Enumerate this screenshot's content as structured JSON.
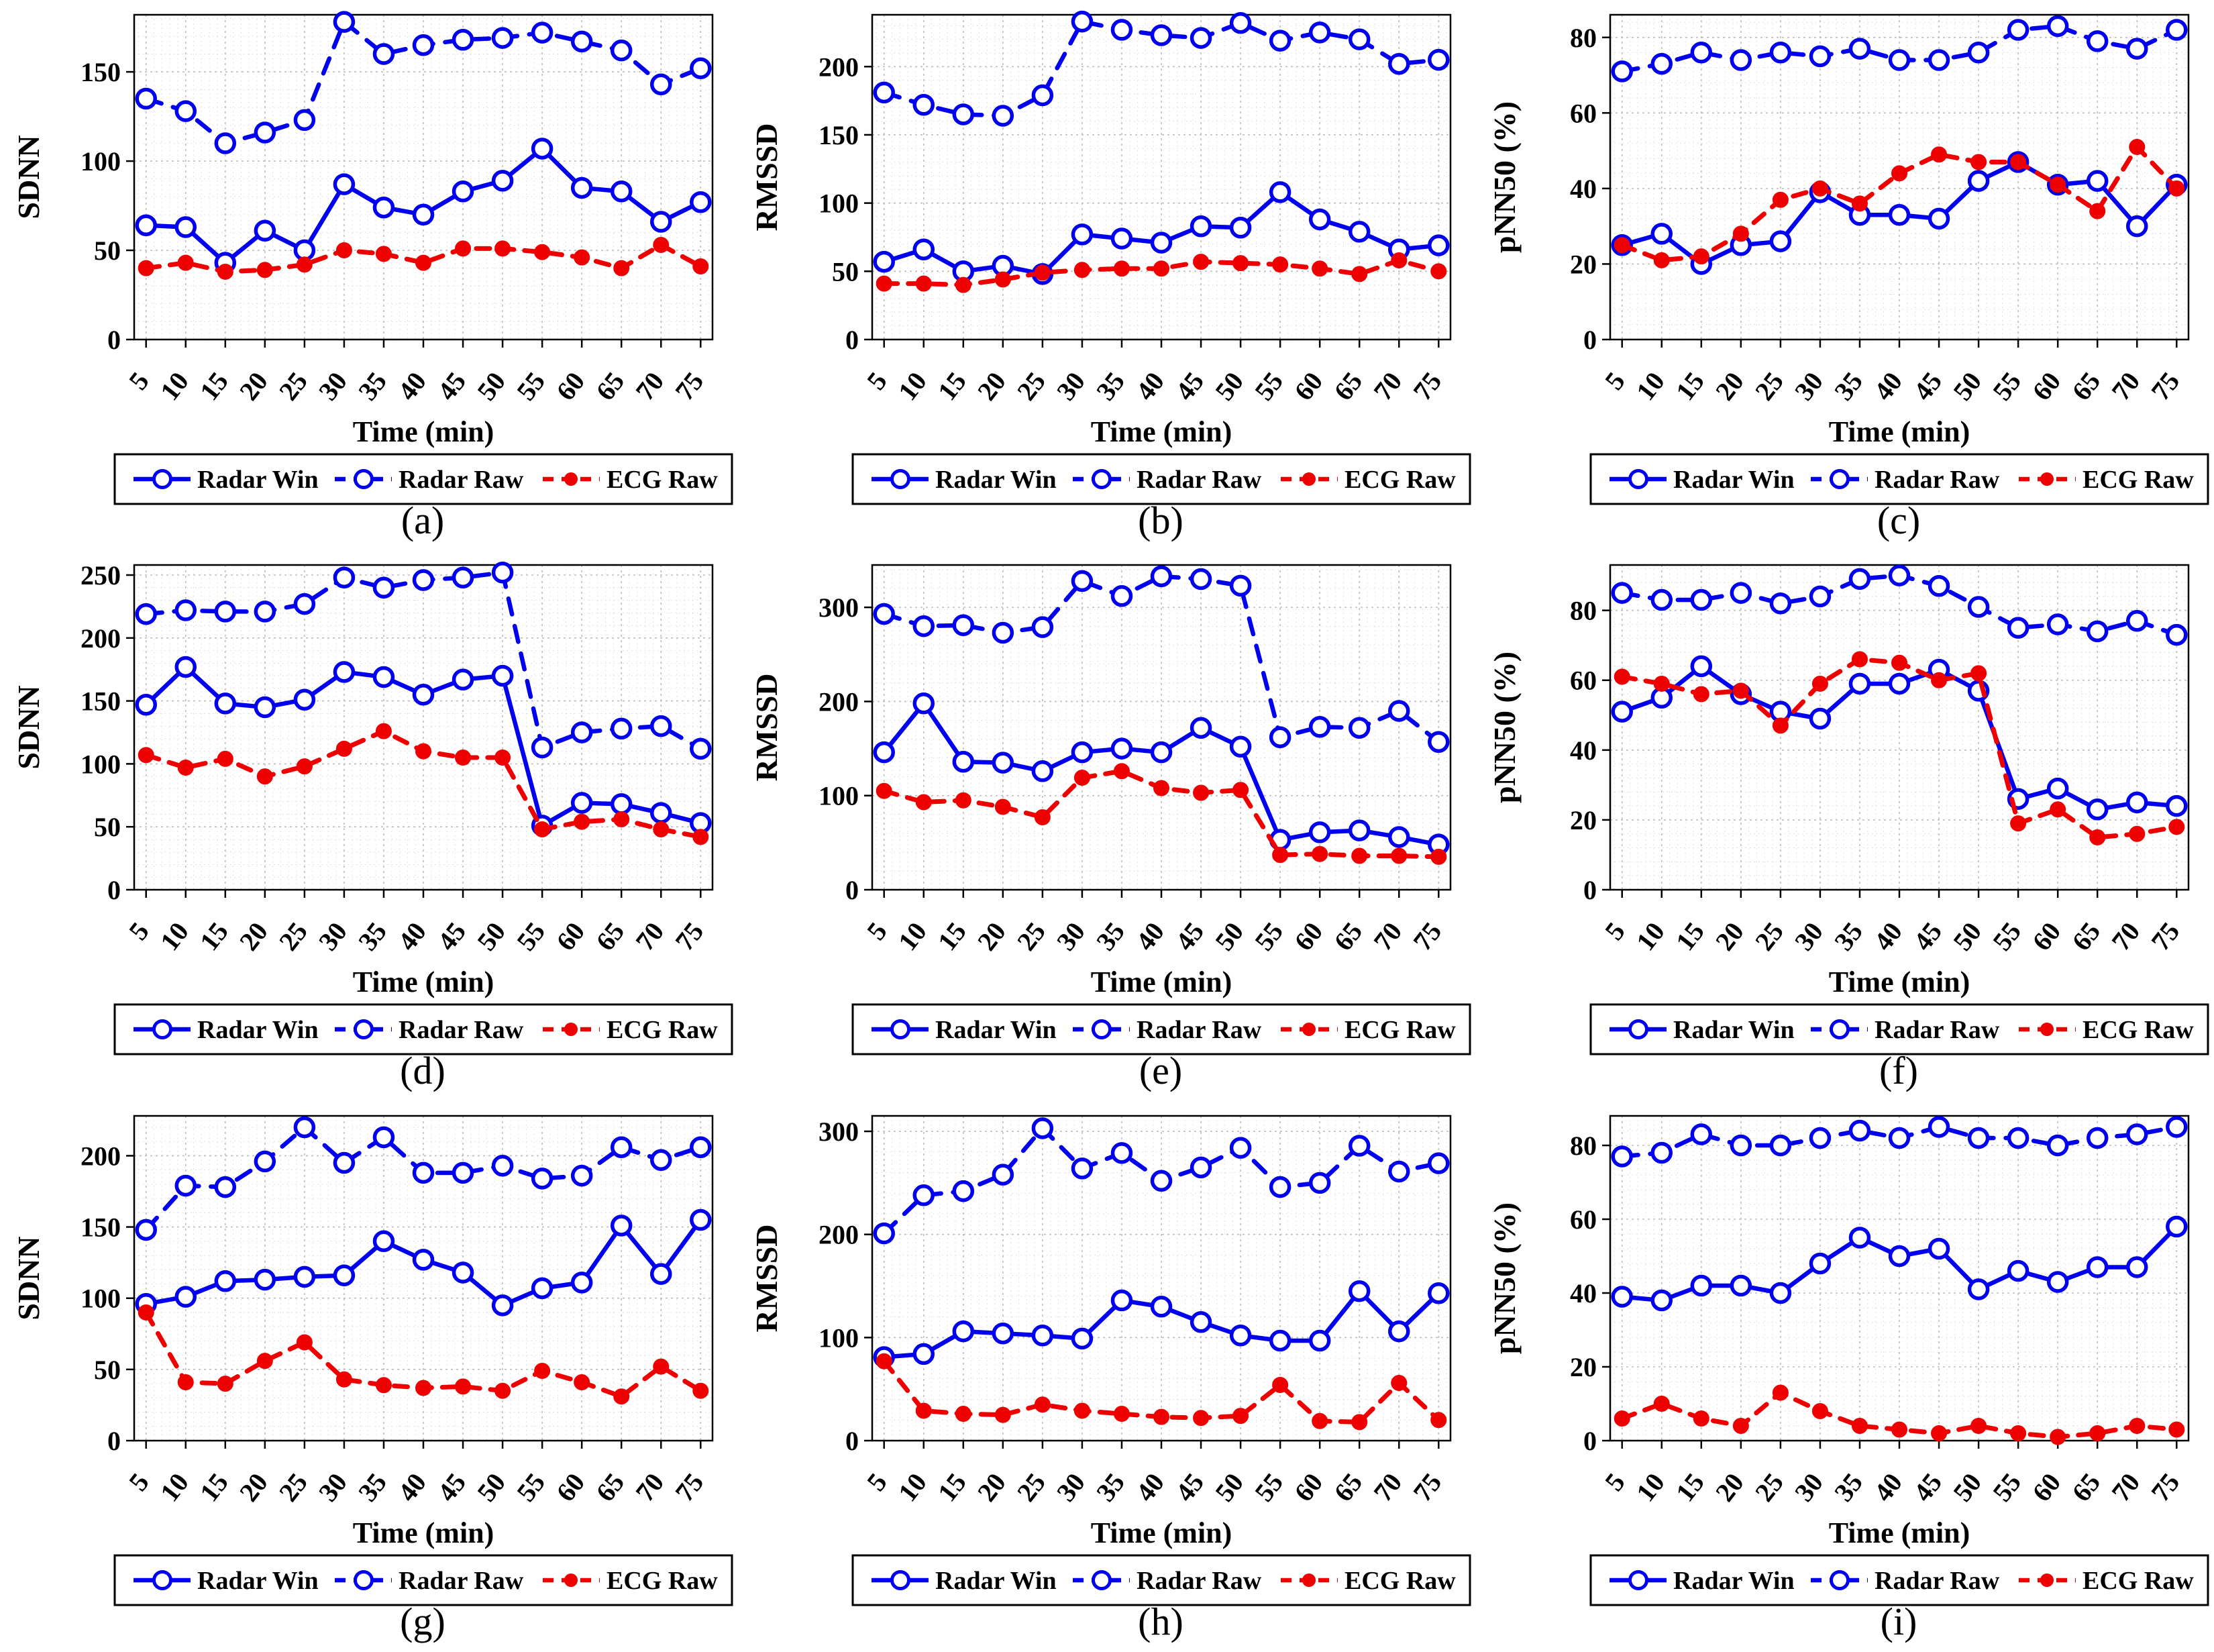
{
  "figure": {
    "xlabel": "Time (min)",
    "legend_labels": [
      "Radar Win",
      "Radar Raw",
      "ECG Raw"
    ],
    "colors": {
      "radar_blue": "#0000EE",
      "ecg_red": "#EE0000",
      "axis_black": "#000000",
      "grid_major": "#bdbdbd",
      "grid_minor": "#d9d9d9"
    }
  },
  "chart_data": [
    {
      "id": "a",
      "caption": "(a)",
      "type": "line",
      "xlabel": "Time (min)",
      "ylabel": "SDNN",
      "x": [
        5,
        10,
        15,
        20,
        25,
        30,
        35,
        40,
        45,
        50,
        55,
        60,
        65,
        70,
        75
      ],
      "xlim": [
        3.5,
        76.5
      ],
      "ylim": [
        0,
        182
      ],
      "yticks": [
        0,
        50,
        100,
        150
      ],
      "grid": true,
      "legend_position": "below",
      "series": [
        {
          "name": "Radar Win",
          "color": "#0000EE",
          "line": "solid",
          "marker": "open-circle",
          "values": [
            64,
            63,
            43,
            61,
            50,
            87,
            74,
            70,
            83,
            89,
            107,
            85,
            83,
            66,
            77
          ]
        },
        {
          "name": "Radar Raw",
          "color": "#0000EE",
          "line": "dashed",
          "marker": "open-circle",
          "values": [
            135,
            128,
            110,
            116,
            123,
            178,
            160,
            165,
            168,
            169,
            172,
            167,
            162,
            143,
            152
          ]
        },
        {
          "name": "ECG Raw",
          "color": "#EE0000",
          "line": "dashed",
          "marker": "filled-circle",
          "values": [
            40,
            43,
            38,
            39,
            42,
            50,
            48,
            43,
            51,
            51,
            49,
            46,
            40,
            53,
            41
          ]
        }
      ]
    },
    {
      "id": "b",
      "caption": "(b)",
      "type": "line",
      "xlabel": "Time (min)",
      "ylabel": "RMSSD",
      "x": [
        5,
        10,
        15,
        20,
        25,
        30,
        35,
        40,
        45,
        50,
        55,
        60,
        65,
        70,
        75
      ],
      "xlim": [
        3.5,
        76.5
      ],
      "ylim": [
        0,
        238
      ],
      "yticks": [
        0,
        50,
        100,
        150,
        200
      ],
      "grid": true,
      "legend_position": "below",
      "series": [
        {
          "name": "Radar Win",
          "color": "#0000EE",
          "line": "solid",
          "marker": "open-circle",
          "values": [
            57,
            66,
            50,
            54,
            48,
            77,
            74,
            71,
            83,
            82,
            108,
            88,
            79,
            66,
            69
          ]
        },
        {
          "name": "Radar Raw",
          "color": "#0000EE",
          "line": "dashed",
          "marker": "open-circle",
          "values": [
            181,
            172,
            165,
            164,
            179,
            233,
            227,
            223,
            221,
            232,
            219,
            225,
            220,
            202,
            205
          ]
        },
        {
          "name": "ECG Raw",
          "color": "#EE0000",
          "line": "dashed",
          "marker": "filled-circle",
          "values": [
            41,
            41,
            40,
            44,
            49,
            51,
            52,
            52,
            57,
            56,
            55,
            52,
            48,
            58,
            50
          ]
        }
      ]
    },
    {
      "id": "c",
      "caption": "(c)",
      "type": "line",
      "xlabel": "Time (min)",
      "ylabel": "pNN50 (%)",
      "x": [
        5,
        10,
        15,
        20,
        25,
        30,
        35,
        40,
        45,
        50,
        55,
        60,
        65,
        70,
        75
      ],
      "xlim": [
        3.5,
        76.5
      ],
      "ylim": [
        0,
        86
      ],
      "yticks": [
        0,
        20,
        40,
        60,
        80
      ],
      "grid": true,
      "legend_position": "below",
      "series": [
        {
          "name": "Radar Win",
          "color": "#0000EE",
          "line": "solid",
          "marker": "open-circle",
          "values": [
            25,
            28,
            20,
            25,
            26,
            39,
            33,
            33,
            32,
            42,
            47,
            41,
            42,
            30,
            41
          ]
        },
        {
          "name": "Radar Raw",
          "color": "#0000EE",
          "line": "dashed",
          "marker": "open-circle",
          "values": [
            71,
            73,
            76,
            74,
            76,
            75,
            77,
            74,
            74,
            76,
            82,
            83,
            79,
            77,
            82
          ]
        },
        {
          "name": "ECG Raw",
          "color": "#EE0000",
          "line": "dashed",
          "marker": "filled-circle",
          "values": [
            25,
            21,
            22,
            28,
            37,
            40,
            36,
            44,
            49,
            47,
            47,
            41,
            34,
            51,
            40
          ]
        }
      ]
    },
    {
      "id": "d",
      "caption": "(d)",
      "type": "line",
      "xlabel": "Time (min)",
      "ylabel": "SDNN",
      "x": [
        5,
        10,
        15,
        20,
        25,
        30,
        35,
        40,
        45,
        50,
        55,
        60,
        65,
        70,
        75
      ],
      "xlim": [
        3.5,
        76.5
      ],
      "ylim": [
        0,
        258
      ],
      "yticks": [
        0,
        50,
        100,
        150,
        200,
        250
      ],
      "grid": true,
      "legend_position": "below",
      "series": [
        {
          "name": "Radar Win",
          "color": "#0000EE",
          "line": "solid",
          "marker": "open-circle",
          "values": [
            147,
            177,
            148,
            145,
            151,
            173,
            169,
            155,
            167,
            170,
            51,
            69,
            68,
            61,
            53
          ]
        },
        {
          "name": "Radar Raw",
          "color": "#0000EE",
          "line": "dashed",
          "marker": "open-circle",
          "values": [
            219,
            222,
            221,
            221,
            227,
            248,
            240,
            246,
            248,
            252,
            113,
            125,
            128,
            130,
            112
          ]
        },
        {
          "name": "ECG Raw",
          "color": "#EE0000",
          "line": "dashed",
          "marker": "filled-circle",
          "values": [
            107,
            97,
            104,
            90,
            98,
            112,
            126,
            110,
            105,
            105,
            48,
            54,
            56,
            48,
            42
          ]
        }
      ]
    },
    {
      "id": "e",
      "caption": "(e)",
      "type": "line",
      "xlabel": "Time (min)",
      "ylabel": "RMSSD",
      "x": [
        5,
        10,
        15,
        20,
        25,
        30,
        35,
        40,
        45,
        50,
        55,
        60,
        65,
        70,
        75
      ],
      "xlim": [
        3.5,
        76.5
      ],
      "ylim": [
        0,
        345
      ],
      "yticks": [
        0,
        100,
        200,
        300
      ],
      "grid": true,
      "legend_position": "below",
      "series": [
        {
          "name": "Radar Win",
          "color": "#0000EE",
          "line": "solid",
          "marker": "open-circle",
          "values": [
            146,
            198,
            136,
            135,
            126,
            146,
            150,
            146,
            172,
            152,
            53,
            61,
            63,
            56,
            48
          ]
        },
        {
          "name": "Radar Raw",
          "color": "#0000EE",
          "line": "dashed",
          "marker": "open-circle",
          "values": [
            293,
            280,
            281,
            273,
            279,
            328,
            312,
            333,
            330,
            323,
            162,
            173,
            172,
            190,
            157
          ]
        },
        {
          "name": "ECG Raw",
          "color": "#EE0000",
          "line": "dashed",
          "marker": "filled-circle",
          "values": [
            105,
            93,
            95,
            88,
            77,
            119,
            126,
            108,
            103,
            106,
            37,
            38,
            36,
            36,
            35
          ]
        }
      ]
    },
    {
      "id": "f",
      "caption": "(f)",
      "type": "line",
      "xlabel": "Time (min)",
      "ylabel": "pNN50 (%)",
      "x": [
        5,
        10,
        15,
        20,
        25,
        30,
        35,
        40,
        45,
        50,
        55,
        60,
        65,
        70,
        75
      ],
      "xlim": [
        3.5,
        76.5
      ],
      "ylim": [
        0,
        93
      ],
      "yticks": [
        0,
        20,
        40,
        60,
        80
      ],
      "grid": true,
      "legend_position": "below",
      "series": [
        {
          "name": "Radar Win",
          "color": "#0000EE",
          "line": "solid",
          "marker": "open-circle",
          "values": [
            51,
            55,
            64,
            56,
            51,
            49,
            59,
            59,
            63,
            57,
            26,
            29,
            23,
            25,
            24
          ]
        },
        {
          "name": "Radar Raw",
          "color": "#0000EE",
          "line": "dashed",
          "marker": "open-circle",
          "values": [
            85,
            83,
            83,
            85,
            82,
            84,
            89,
            90,
            87,
            81,
            75,
            76,
            74,
            77,
            73
          ]
        },
        {
          "name": "ECG Raw",
          "color": "#EE0000",
          "line": "dashed",
          "marker": "filled-circle",
          "values": [
            61,
            59,
            56,
            57,
            47,
            59,
            66,
            65,
            60,
            62,
            19,
            23,
            15,
            16,
            18
          ]
        }
      ]
    },
    {
      "id": "g",
      "caption": "(g)",
      "type": "line",
      "xlabel": "Time (min)",
      "ylabel": "SDNN",
      "x": [
        5,
        10,
        15,
        20,
        25,
        30,
        35,
        40,
        45,
        50,
        55,
        60,
        65,
        70,
        75
      ],
      "xlim": [
        3.5,
        76.5
      ],
      "ylim": [
        0,
        228
      ],
      "yticks": [
        0,
        50,
        100,
        150,
        200
      ],
      "grid": true,
      "legend_position": "below",
      "series": [
        {
          "name": "Radar Win",
          "color": "#0000EE",
          "line": "solid",
          "marker": "open-circle",
          "values": [
            96,
            101,
            112,
            113,
            115,
            116,
            140,
            127,
            118,
            95,
            107,
            111,
            151,
            117,
            155
          ]
        },
        {
          "name": "Radar Raw",
          "color": "#0000EE",
          "line": "dashed",
          "marker": "open-circle",
          "values": [
            148,
            179,
            178,
            196,
            220,
            195,
            213,
            188,
            188,
            193,
            184,
            186,
            206,
            197,
            206
          ]
        },
        {
          "name": "ECG Raw",
          "color": "#EE0000",
          "line": "dashed",
          "marker": "filled-circle",
          "values": [
            90,
            41,
            40,
            56,
            69,
            43,
            39,
            37,
            38,
            35,
            49,
            41,
            31,
            52,
            35
          ]
        }
      ]
    },
    {
      "id": "h",
      "caption": "(h)",
      "type": "line",
      "xlabel": "Time (min)",
      "ylabel": "RMSSD",
      "x": [
        5,
        10,
        15,
        20,
        25,
        30,
        35,
        40,
        45,
        50,
        55,
        60,
        65,
        70,
        75
      ],
      "xlim": [
        3.5,
        76.5
      ],
      "ylim": [
        0,
        315
      ],
      "yticks": [
        0,
        100,
        200,
        300
      ],
      "grid": true,
      "legend_position": "below",
      "series": [
        {
          "name": "Radar Win",
          "color": "#0000EE",
          "line": "solid",
          "marker": "open-circle",
          "values": [
            81,
            84,
            106,
            104,
            102,
            99,
            136,
            130,
            115,
            102,
            97,
            97,
            145,
            106,
            143
          ]
        },
        {
          "name": "Radar Raw",
          "color": "#0000EE",
          "line": "dashed",
          "marker": "open-circle",
          "values": [
            201,
            238,
            242,
            258,
            303,
            264,
            279,
            252,
            265,
            284,
            246,
            250,
            286,
            261,
            269
          ]
        },
        {
          "name": "ECG Raw",
          "color": "#EE0000",
          "line": "dashed",
          "marker": "filled-circle",
          "values": [
            77,
            29,
            26,
            25,
            35,
            29,
            26,
            23,
            22,
            24,
            54,
            19,
            18,
            56,
            20
          ]
        }
      ]
    },
    {
      "id": "i",
      "caption": "(i)",
      "type": "line",
      "xlabel": "Time (min)",
      "ylabel": "pNN50 (%)",
      "x": [
        5,
        10,
        15,
        20,
        25,
        30,
        35,
        40,
        45,
        50,
        55,
        60,
        65,
        70,
        75
      ],
      "xlim": [
        3.5,
        76.5
      ],
      "ylim": [
        0,
        88
      ],
      "yticks": [
        0,
        20,
        40,
        60,
        80
      ],
      "grid": true,
      "legend_position": "below",
      "series": [
        {
          "name": "Radar Win",
          "color": "#0000EE",
          "line": "solid",
          "marker": "open-circle",
          "values": [
            39,
            38,
            42,
            42,
            40,
            48,
            55,
            50,
            52,
            41,
            46,
            43,
            47,
            47,
            58
          ]
        },
        {
          "name": "Radar Raw",
          "color": "#0000EE",
          "line": "dashed",
          "marker": "open-circle",
          "values": [
            77,
            78,
            83,
            80,
            80,
            82,
            84,
            82,
            85,
            82,
            82,
            80,
            82,
            83,
            85
          ]
        },
        {
          "name": "ECG Raw",
          "color": "#EE0000",
          "line": "dashed",
          "marker": "filled-circle",
          "values": [
            6,
            10,
            6,
            4,
            13,
            8,
            4,
            3,
            2,
            4,
            2,
            1,
            2,
            4,
            3
          ]
        }
      ]
    }
  ]
}
